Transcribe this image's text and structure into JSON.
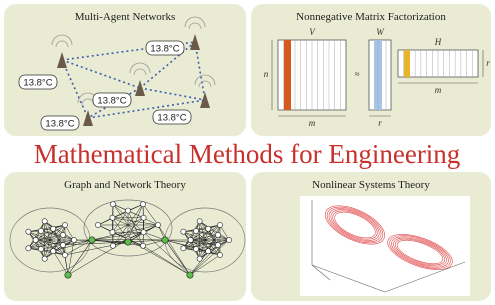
{
  "main_title": "Mathematical Methods for Engineering",
  "panels": [
    {
      "title": "Multi-Agent Networks",
      "sensor_labels": [
        "13.8°C",
        "13.8°C",
        "13.8°C",
        "13.8°C",
        "13.8°C"
      ]
    },
    {
      "title": "Nonnegative Matrix Factorization",
      "matrix_labels": {
        "V": "V",
        "W": "W",
        "H": "H",
        "n": "n",
        "approx": "≈",
        "m_v": "m",
        "r_w": "r",
        "r_h": "r",
        "m_h": "m"
      }
    },
    {
      "title": "Graph and Network Theory"
    },
    {
      "title": "Nonlinear Systems Theory"
    }
  ]
}
